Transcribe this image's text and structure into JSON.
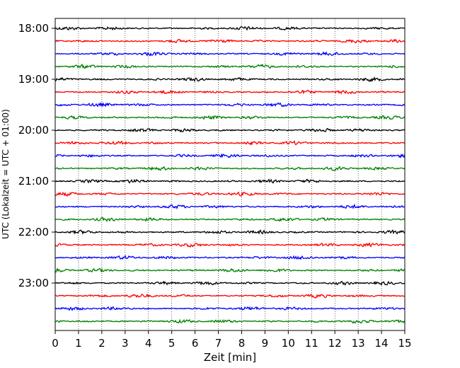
{
  "chart_data": {
    "type": "line",
    "title": "",
    "xlabel": "Zeit  [min]",
    "ylabel": "UTC (Lokalzeit = UTC + 01:00)",
    "xlim": [
      0,
      15
    ],
    "x_ticks": [
      "0",
      "1",
      "2",
      "3",
      "4",
      "5",
      "6",
      "7",
      "8",
      "9",
      "10",
      "11",
      "12",
      "13",
      "14",
      "15"
    ],
    "y_ticks": [
      "18:00",
      "19:00",
      "20:00",
      "21:00",
      "22:00",
      "23:00"
    ],
    "grid": "vertical dotted",
    "trace_interval_minutes": 15,
    "start_time": "18:00",
    "end_time": "23:45",
    "trace_colors": [
      "#000000",
      "#ff0000",
      "#0000ff",
      "#008000"
    ]
  }
}
